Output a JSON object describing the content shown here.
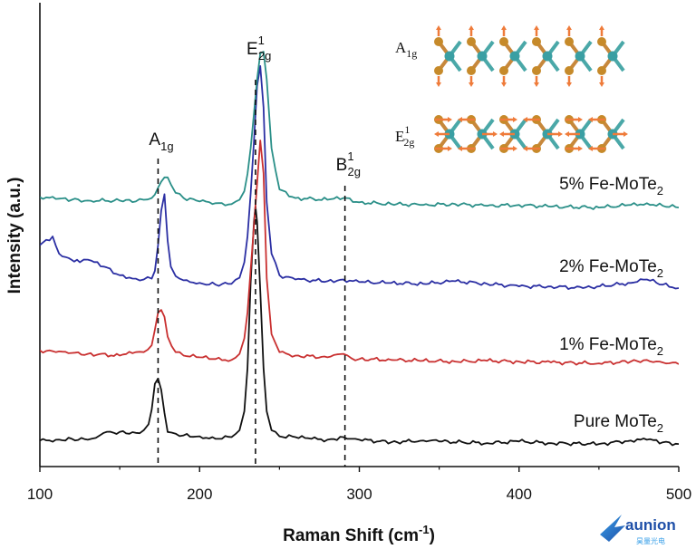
{
  "chart_data": {
    "type": "line",
    "xlabel": "Raman Shift (cm",
    "xlabel_sup": "-1",
    "xlabel_close": ")",
    "ylabel": "Intensity (a.u.)",
    "xlim": [
      100,
      500
    ],
    "xticks": [
      "100",
      "200",
      "300",
      "400",
      "500"
    ],
    "y_tick_labels": "none",
    "grid": false,
    "peak_markers": [
      {
        "base": "A",
        "sub": "1g",
        "sup": "",
        "x": 174
      },
      {
        "base": "E",
        "sub": "2g",
        "sup": "1",
        "x": 235
      },
      {
        "base": "B",
        "sub": "2g",
        "sup": "1",
        "x": 291
      }
    ],
    "series": [
      {
        "name_base": "Pure MoTe",
        "name_sub": "2",
        "color": "#111111",
        "x": [
          100,
          110,
          120,
          130,
          135,
          140,
          150,
          160,
          165,
          168,
          170,
          172,
          174,
          176,
          178,
          180,
          185,
          190,
          200,
          210,
          220,
          225,
          228,
          230,
          232,
          234,
          235,
          236,
          238,
          240,
          242,
          245,
          250,
          260,
          270,
          280,
          290,
          295,
          300,
          320,
          340,
          350,
          380,
          400,
          420,
          450,
          470,
          480,
          490,
          500
        ],
        "y": [
          0.06,
          0.07,
          0.08,
          0.07,
          0.09,
          0.15,
          0.16,
          0.15,
          0.18,
          0.25,
          0.42,
          0.72,
          0.78,
          0.65,
          0.38,
          0.16,
          0.14,
          0.12,
          0.11,
          0.08,
          0.1,
          0.18,
          0.4,
          0.9,
          1.9,
          2.6,
          2.78,
          2.6,
          1.8,
          0.9,
          0.4,
          0.18,
          0.11,
          0.1,
          0.08,
          0.07,
          0.1,
          0.08,
          0.07,
          0.04,
          0.06,
          0.05,
          0.03,
          0.05,
          0.03,
          0.02,
          0.06,
          0.07,
          0.04,
          0.02
        ]
      },
      {
        "name_base": "1% Fe-MoTe",
        "name_sub": "2",
        "color": "#c93030",
        "x": [
          100,
          110,
          120,
          130,
          150,
          160,
          165,
          170,
          172,
          174,
          176,
          178,
          180,
          185,
          190,
          200,
          210,
          220,
          225,
          228,
          230,
          232,
          234,
          236,
          238,
          240,
          242,
          245,
          250,
          260,
          280,
          290,
          295,
          300,
          320,
          340,
          360,
          380,
          400,
          420,
          450,
          470,
          480,
          490,
          500
        ],
        "y": [
          0.16,
          0.14,
          0.13,
          0.12,
          0.1,
          0.14,
          0.14,
          0.22,
          0.4,
          0.6,
          0.63,
          0.55,
          0.32,
          0.14,
          0.1,
          0.08,
          0.06,
          0.05,
          0.12,
          0.3,
          0.6,
          1.1,
          1.6,
          2.1,
          2.6,
          2.22,
          1.0,
          0.35,
          0.14,
          0.1,
          0.08,
          0.12,
          0.07,
          0.06,
          0.05,
          0.04,
          0.03,
          0.04,
          0.03,
          0.02,
          0.01,
          0.03,
          0.05,
          0.02,
          0.0
        ]
      },
      {
        "name_base": "2% Fe-MoTe",
        "name_sub": "2",
        "color": "#2b2fa3",
        "x": [
          100,
          108,
          112,
          118,
          125,
          130,
          140,
          150,
          160,
          165,
          170,
          172,
          174,
          176,
          178,
          180,
          182,
          185,
          190,
          200,
          210,
          220,
          225,
          228,
          230,
          232,
          234,
          236,
          238,
          240,
          242,
          245,
          250,
          260,
          280,
          290,
          300,
          320,
          340,
          360,
          380,
          400,
          420,
          440,
          470,
          480,
          490,
          500
        ],
        "y": [
          0.5,
          0.6,
          0.4,
          0.35,
          0.3,
          0.33,
          0.25,
          0.15,
          0.11,
          0.1,
          0.11,
          0.2,
          0.5,
          0.9,
          1.09,
          0.55,
          0.25,
          0.14,
          0.09,
          0.06,
          0.04,
          0.05,
          0.12,
          0.3,
          0.6,
          1.1,
          1.7,
          2.35,
          2.58,
          2.1,
          1.0,
          0.4,
          0.15,
          0.1,
          0.08,
          0.1,
          0.07,
          0.06,
          0.05,
          0.08,
          0.05,
          0.02,
          0.02,
          0.0,
          0.06,
          0.1,
          0.04,
          0.0
        ]
      },
      {
        "name_base": "5% Fe-MoTe",
        "name_sub": "2",
        "color": "#2a8f88",
        "x": [
          100,
          110,
          120,
          130,
          150,
          160,
          165,
          170,
          172,
          174,
          176,
          178,
          180,
          182,
          185,
          190,
          200,
          210,
          220,
          225,
          228,
          230,
          232,
          234,
          236,
          238,
          240,
          242,
          245,
          250,
          260,
          280,
          290,
          300,
          320,
          340,
          360,
          380,
          400,
          420,
          450,
          470,
          480,
          490,
          500
        ],
        "y": [
          0.13,
          0.11,
          0.1,
          0.09,
          0.09,
          0.08,
          0.1,
          0.12,
          0.16,
          0.24,
          0.31,
          0.36,
          0.36,
          0.28,
          0.18,
          0.12,
          0.08,
          0.06,
          0.05,
          0.1,
          0.2,
          0.4,
          0.7,
          1.1,
          1.5,
          1.8,
          1.82,
          1.5,
          0.7,
          0.22,
          0.12,
          0.1,
          0.12,
          0.07,
          0.05,
          0.04,
          0.05,
          0.03,
          0.04,
          0.02,
          0.01,
          0.04,
          0.06,
          0.03,
          0.01
        ]
      }
    ],
    "inset": {
      "mode_top": {
        "base": "A",
        "sub": "1g",
        "sup": ""
      },
      "mode_bottom": {
        "base": "E",
        "sub": "2g",
        "sup": "1"
      }
    }
  },
  "logo": {
    "brand": "aunion",
    "sub": "昊量光电"
  }
}
